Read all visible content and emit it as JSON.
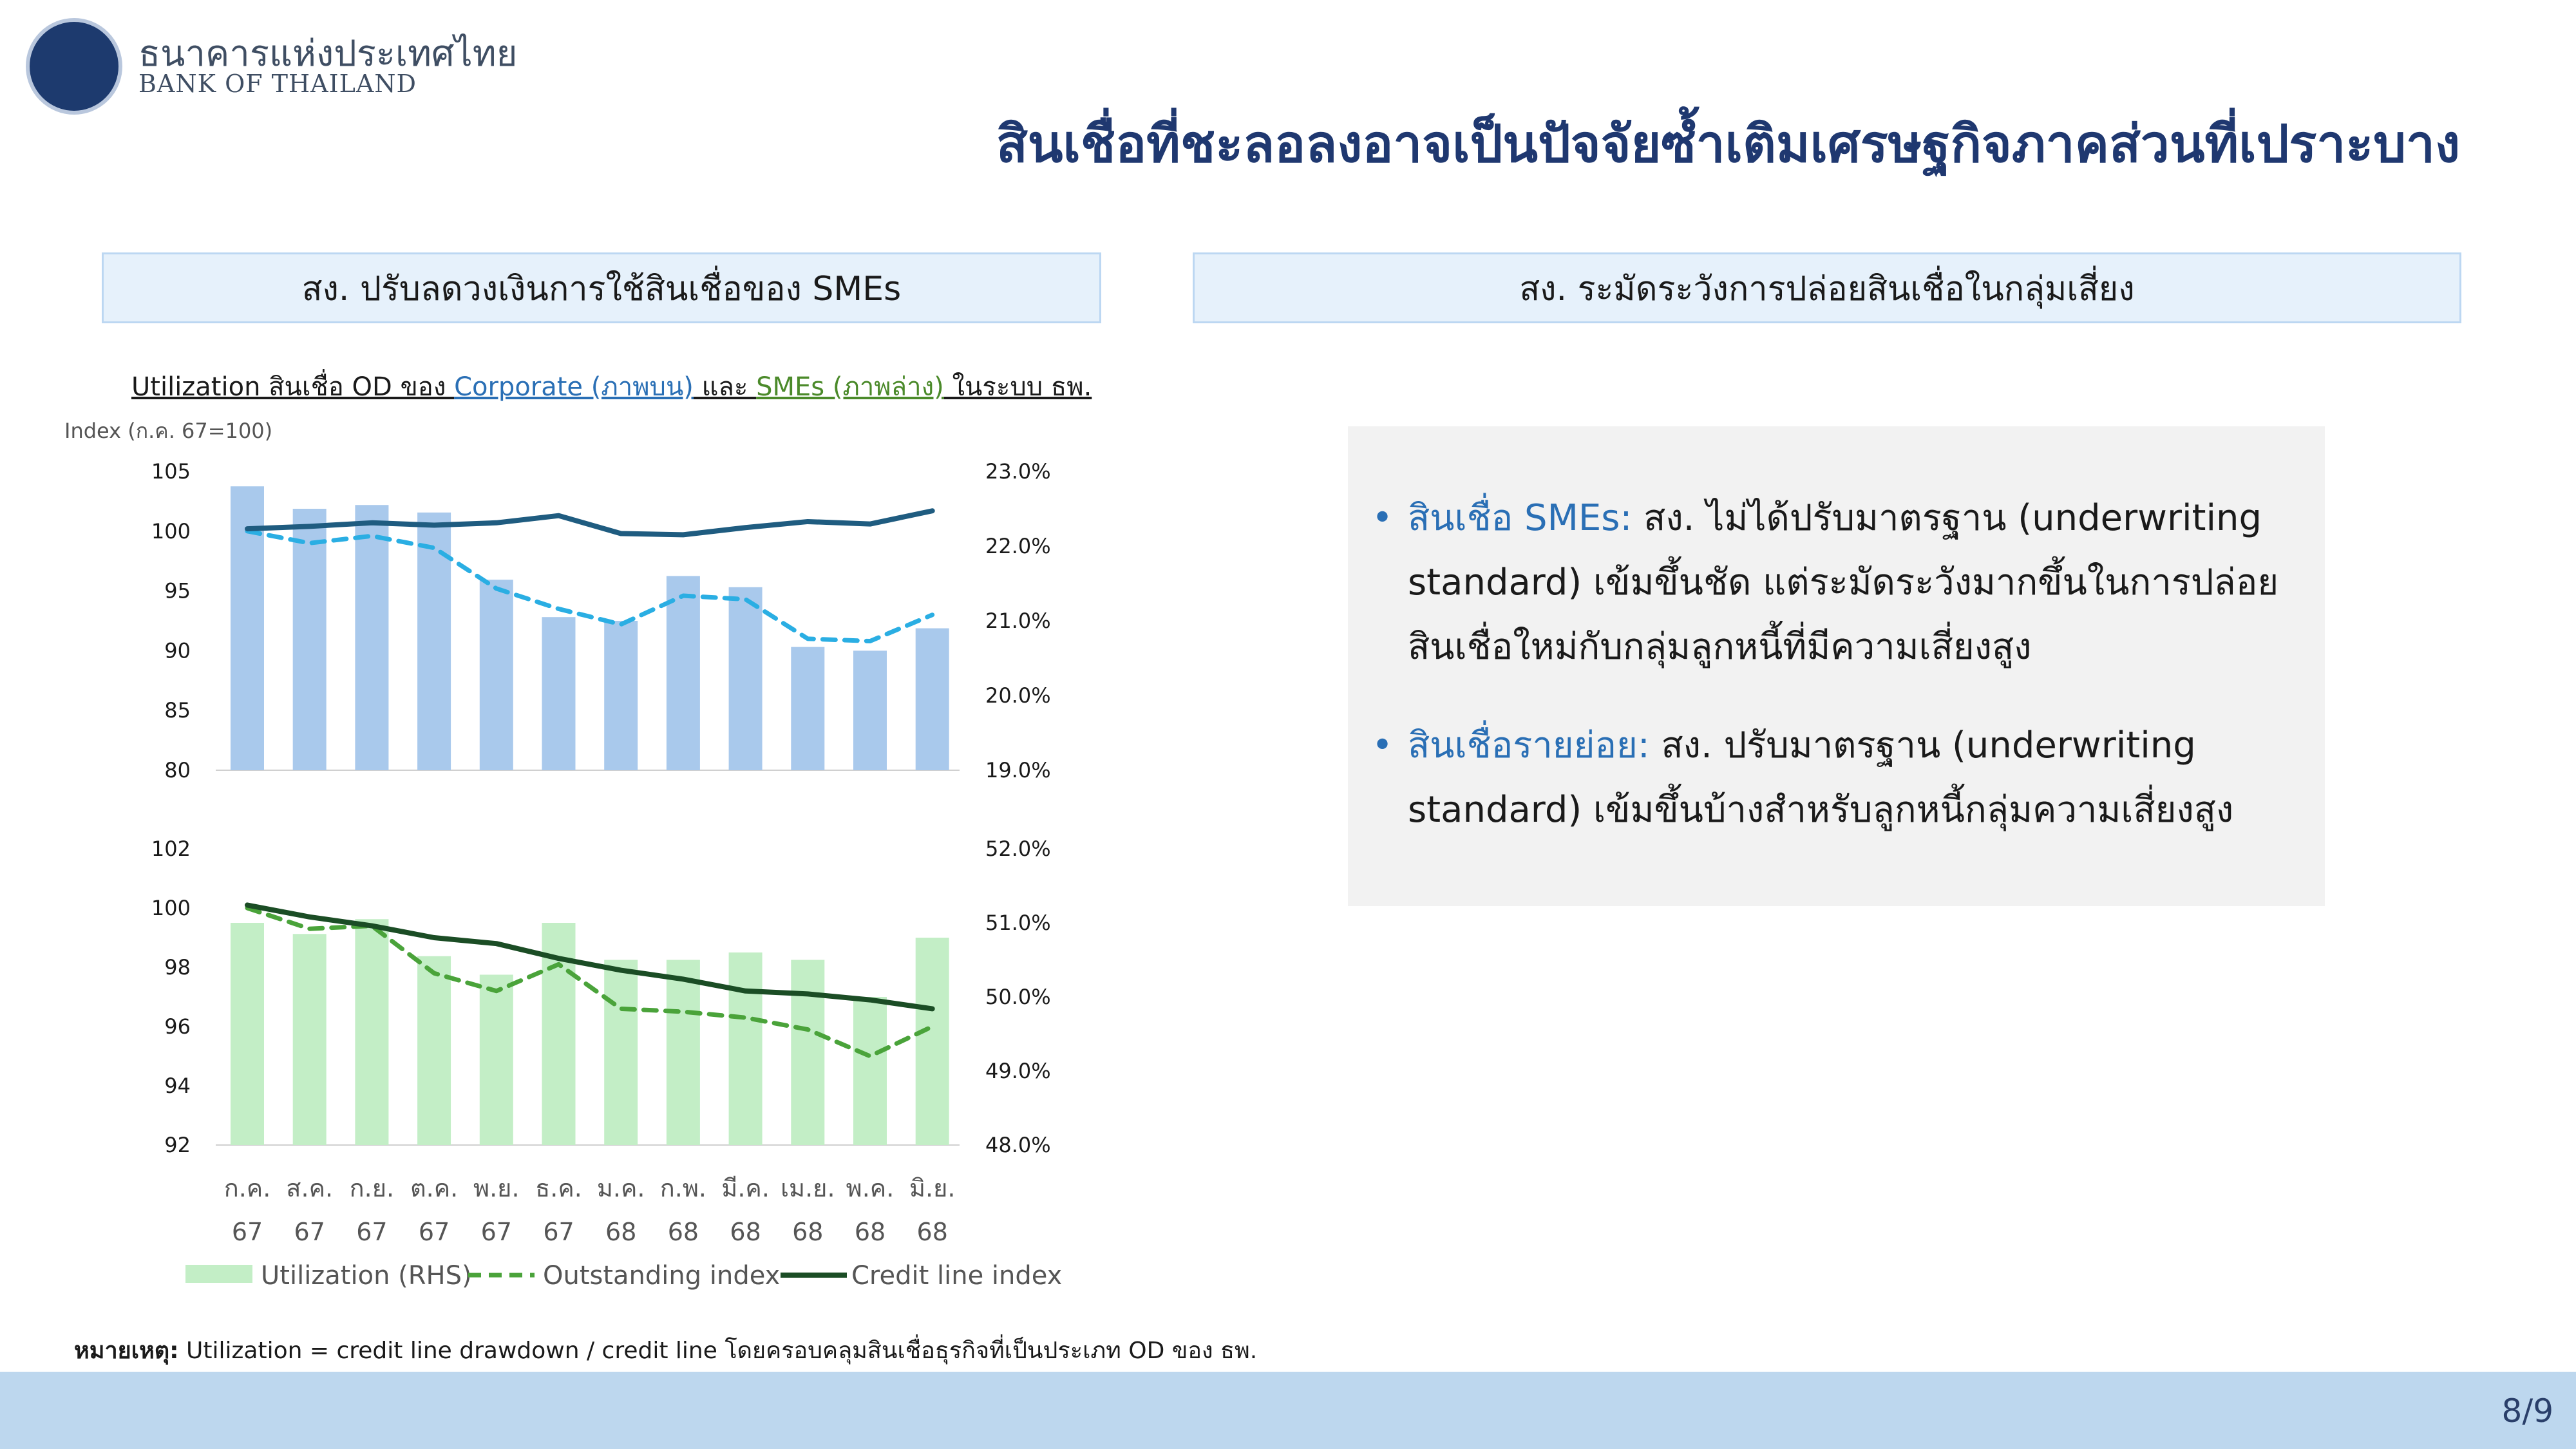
{
  "header": {
    "logo_th": "ธนาคารแห่งประเทศไทย",
    "logo_en": "BANK OF THAILAND",
    "title": "สินเชื่อที่ชะลอลงอาจเป็นปัจจัยซ้ำเติมเศรษฐกิจภาคส่วนที่เปราะบาง"
  },
  "left_panel": {
    "heading": "สง. ปรับลดวงเงินการใช้สินเชื่อของ SMEs",
    "subtitle_1": "Utilization สินเชื่อ OD ของ ",
    "subtitle_corp": "Corporate (ภาพบน)",
    "subtitle_2": " และ ",
    "subtitle_sme": "SMEs (ภาพล่าง)",
    "subtitle_3": " ในระบบ ธพ.",
    "footnote_label": "หมายเหตุ:",
    "footnote_text": " Utilization = credit line drawdown / credit line  โดยครอบคลุมสินเชื่อธุรกิจที่เป็นประเภท OD ของ ธพ."
  },
  "right_panel": {
    "heading": "สง. ระมัดระวังการปล่อยสินเชื่อในกลุ่มเสี่ยง",
    "bullets": [
      {
        "lead": "สินเชื่อ SMEs:",
        "text": " สง. ไม่ได้ปรับมาตรฐาน (underwriting standard) เข้มขึ้นชัด แต่ระมัดระวังมากขึ้นในการปล่อยสินเชื่อใหม่กับกลุ่มลูกหนี้ที่มีความเสี่ยงสูง"
      },
      {
        "lead": "สินเชื่อรายย่อย:",
        "text": " สง. ปรับมาตรฐาน (underwriting standard) เข้มขึ้นบ้างสำหรับลูกหนี้กลุ่มความเสี่ยงสูง"
      }
    ]
  },
  "footer": {
    "page": "8/9"
  },
  "chart_data": [
    {
      "type": "bar",
      "panel": "Corporate",
      "ylabel": "Index (ก.ค. 67=100)",
      "categories": [
        "ก.ค. 67",
        "ส.ค. 67",
        "ก.ย. 67",
        "ต.ค. 67",
        "พ.ย. 67",
        "ธ.ค. 67",
        "ม.ค. 68",
        "ก.พ. 68",
        "มี.ค. 68",
        "เม.ย. 68",
        "พ.ค. 68",
        "มิ.ย. 68"
      ],
      "ylim": [
        80,
        105
      ],
      "y_ticks": [
        "80",
        "85",
        "90",
        "95",
        "100",
        "105"
      ],
      "y2lim": [
        19.0,
        23.0
      ],
      "y2_ticks": [
        "19.0%",
        "20.0%",
        "21.0%",
        "22.0%",
        "23.0%"
      ],
      "series": [
        {
          "name": "Utilization (RHS)",
          "kind": "bar",
          "axis": "right",
          "color": "#a9c9ec",
          "values": [
            22.8,
            22.5,
            22.55,
            22.45,
            21.55,
            21.05,
            21.0,
            21.6,
            21.45,
            20.65,
            20.6,
            20.9
          ]
        },
        {
          "name": "Outstanding index",
          "kind": "dashed",
          "axis": "left",
          "color": "#2aaee3",
          "values": [
            100.0,
            99.0,
            99.6,
            98.6,
            95.2,
            93.5,
            92.2,
            94.6,
            94.3,
            91.0,
            90.8,
            93.0
          ]
        },
        {
          "name": "Credit line index",
          "kind": "line",
          "axis": "left",
          "color": "#1f5c80",
          "values": [
            100.2,
            100.4,
            100.7,
            100.5,
            100.7,
            101.3,
            99.8,
            99.7,
            100.3,
            100.8,
            100.6,
            101.7
          ]
        }
      ]
    },
    {
      "type": "bar",
      "panel": "SMEs",
      "categories": [
        "ก.ค. 67",
        "ส.ค. 67",
        "ก.ย. 67",
        "ต.ค. 67",
        "พ.ย. 67",
        "ธ.ค. 67",
        "ม.ค. 68",
        "ก.พ. 68",
        "มี.ค. 68",
        "เม.ย. 68",
        "พ.ค. 68",
        "มิ.ย. 68"
      ],
      "x_top": [
        "ก.ค.",
        "ส.ค.",
        "ก.ย.",
        "ต.ค.",
        "พ.ย.",
        "ธ.ค.",
        "ม.ค.",
        "ก.พ.",
        "มี.ค.",
        "เม.ย.",
        "พ.ค.",
        "มิ.ย."
      ],
      "x_bottom": [
        "67",
        "67",
        "67",
        "67",
        "67",
        "67",
        "68",
        "68",
        "68",
        "68",
        "68",
        "68"
      ],
      "ylim": [
        92,
        102
      ],
      "y_ticks": [
        "92",
        "94",
        "96",
        "98",
        "100",
        "102"
      ],
      "y2lim": [
        48.0,
        52.0
      ],
      "y2_ticks": [
        "48.0%",
        "49.0%",
        "50.0%",
        "51.0%",
        "52.0%"
      ],
      "series": [
        {
          "name": "Utilization (RHS)",
          "kind": "bar",
          "axis": "right",
          "color": "#c3eec6",
          "values": [
            51.0,
            50.85,
            51.05,
            50.55,
            50.3,
            51.0,
            50.5,
            50.5,
            50.6,
            50.5,
            50.0,
            50.8
          ]
        },
        {
          "name": "Outstanding index",
          "kind": "dashed",
          "axis": "left",
          "color": "#4aa33a",
          "values": [
            100.0,
            99.3,
            99.4,
            97.8,
            97.2,
            98.1,
            96.6,
            96.5,
            96.3,
            95.9,
            95.0,
            96.0
          ]
        },
        {
          "name": "Credit line index",
          "kind": "line",
          "axis": "left",
          "color": "#1b4d25",
          "values": [
            100.1,
            99.7,
            99.4,
            99.0,
            98.8,
            98.3,
            97.9,
            97.6,
            97.2,
            97.1,
            96.9,
            96.6
          ]
        }
      ],
      "legend": [
        "Utilization (RHS)",
        "Outstanding index",
        "Credit line index"
      ]
    }
  ]
}
